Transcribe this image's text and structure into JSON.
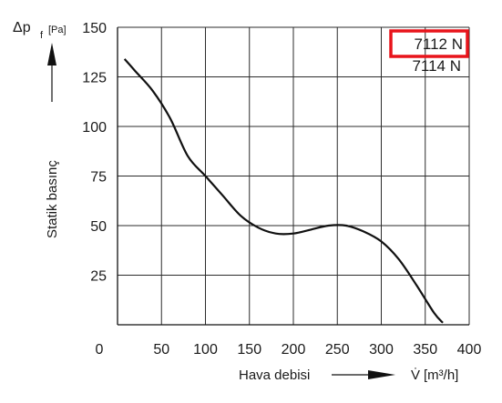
{
  "chart_data": {
    "type": "line",
    "xlim": [
      0,
      400
    ],
    "ylim": [
      0,
      150
    ],
    "x_ticks": [
      "0",
      "50",
      "100",
      "150",
      "200",
      "250",
      "300",
      "350",
      "400"
    ],
    "y_ticks": [
      "25",
      "50",
      "75",
      "100",
      "125",
      "150"
    ],
    "grid": true,
    "ylabel": "Statik basınç",
    "ylabel_symbol": "Δp",
    "ylabel_subscript": "f",
    "ylabel_unit": "[Pa]",
    "xlabel": "Hava debisi",
    "xlabel_symbol": "V̇",
    "xlabel_unit": "[m³/h]",
    "legend": [
      "7112 N",
      "7114 N"
    ],
    "legend_highlight": "7112 N",
    "legend_position": "top-right",
    "highlight_color": "#e8141b",
    "line_color": "#111111",
    "series": [
      {
        "x": [
          0,
          20,
          40,
          60,
          80,
          100,
          120,
          140,
          160,
          180,
          200,
          220,
          240,
          260,
          280,
          300,
          320,
          340,
          360,
          370
        ],
        "y": [
          134,
          128,
          118,
          104,
          85,
          75,
          65,
          55,
          49,
          46,
          46,
          48,
          50,
          50,
          47,
          42,
          33,
          20,
          6,
          1
        ]
      }
    ]
  }
}
